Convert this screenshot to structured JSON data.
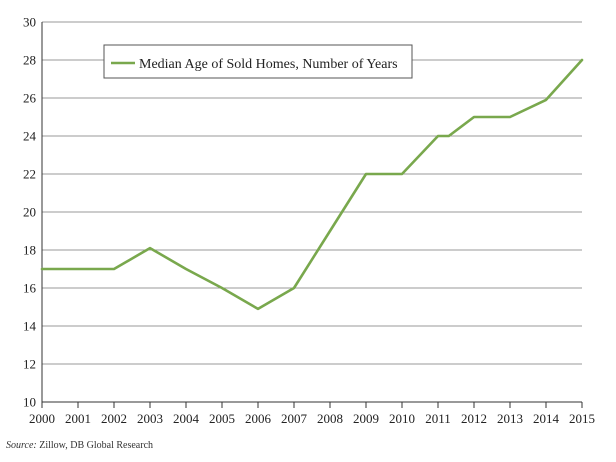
{
  "chart_data": {
    "type": "line",
    "title": "",
    "xlabel": "",
    "ylabel": "",
    "x": [
      "2000",
      "2001",
      "2002",
      "2003",
      "2004",
      "2005",
      "2006",
      "2007",
      "2008",
      "2009",
      "2010",
      "2011",
      "2011.3",
      "2012",
      "2013",
      "2014",
      "2015"
    ],
    "x_tick_labels": [
      "2000",
      "2001",
      "2002",
      "2003",
      "2004",
      "2005",
      "2006",
      "2007",
      "2008",
      "2009",
      "2010",
      "2011",
      "2012",
      "2013",
      "2014",
      "2015"
    ],
    "y_tick_labels": [
      "10",
      "12",
      "14",
      "16",
      "18",
      "20",
      "22",
      "24",
      "26",
      "28",
      "30"
    ],
    "ylim": [
      10,
      30
    ],
    "grid": "horizontal",
    "legend_position": "top-left",
    "series": [
      {
        "name": "Median Age of Sold Homes, Number of Years",
        "color": "#79a84d",
        "points": [
          [
            2000,
            17
          ],
          [
            2001,
            17
          ],
          [
            2002,
            17
          ],
          [
            2003,
            18.1
          ],
          [
            2004,
            17
          ],
          [
            2005,
            16
          ],
          [
            2006,
            14.9
          ],
          [
            2007,
            16
          ],
          [
            2008,
            19
          ],
          [
            2009,
            22
          ],
          [
            2010,
            22
          ],
          [
            2011,
            24
          ],
          [
            2011.3,
            24
          ],
          [
            2012,
            25
          ],
          [
            2013,
            25
          ],
          [
            2014,
            25.9
          ],
          [
            2015,
            28
          ]
        ]
      }
    ]
  },
  "source": {
    "label": "Source:",
    "text": " Zillow, DB Global Research"
  }
}
